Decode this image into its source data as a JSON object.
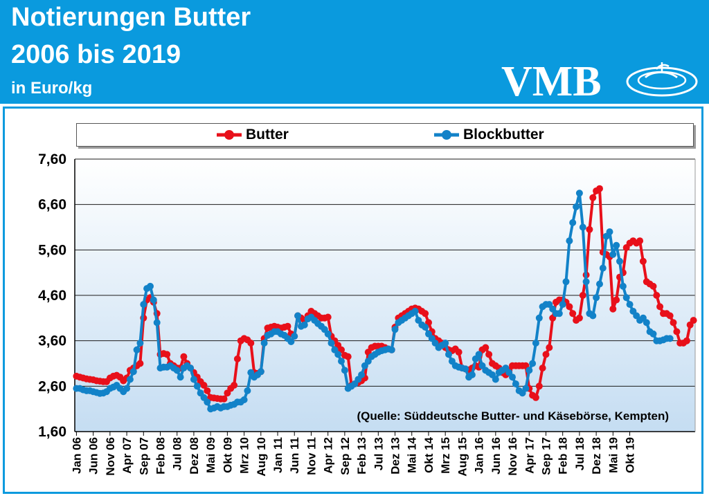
{
  "header": {
    "title_line1": "Notierungen Butter",
    "title_line2": "2006 bis 2019",
    "unit": "in Euro/kg",
    "logo_text": "VMB"
  },
  "colors": {
    "header_bg": "#0a9ade",
    "butter": "#e8101a",
    "blockbutter": "#1282c8",
    "plot_bg_top": "#ffffff",
    "plot_bg_bottom": "#c5ddf2"
  },
  "legend": {
    "butter_label": "Butter",
    "blockbutter_label": "Blockbutter"
  },
  "source_note": "(Quelle: Süddeutsche Butter- und Käsebörse, Kempten)",
  "chart_data": {
    "type": "line",
    "title": "",
    "xlabel": "",
    "ylabel": "",
    "ylim": [
      1.6,
      7.6
    ],
    "y_ticks": [
      "7,60",
      "6,60",
      "5,60",
      "4,60",
      "3,60",
      "2,60",
      "1,60"
    ],
    "x_tick_labels": [
      "Jan 06",
      "Jun 06",
      "Nov 06",
      "Apr 07",
      "Sep 07",
      "Feb 08",
      "Jul 08",
      "Dez 08",
      "Mai 09",
      "Okt 09",
      "Mrz 10",
      "Aug 10",
      "Jan 11",
      "Jun 11",
      "Nov 11",
      "Apr 12",
      "Sep 12",
      "Feb 13",
      "Jul 13",
      "Dez 13",
      "Mai 14",
      "Okt 14",
      "Mrz 15",
      "Aug 15",
      "Jan 16",
      "Jun 16",
      "Nov 16",
      "Apr 17",
      "Sep 17",
      "Feb 18",
      "Jul 18",
      "Dez 18",
      "Mai 19",
      "Okt 19"
    ],
    "x_start": "Jan 06",
    "x_end": "Dez 19",
    "grid": true,
    "legend_position": "top",
    "series": [
      {
        "name": "Butter",
        "values": [
          2.82,
          2.8,
          2.78,
          2.76,
          2.75,
          2.74,
          2.72,
          2.71,
          2.7,
          2.7,
          2.78,
          2.82,
          2.84,
          2.8,
          2.72,
          2.78,
          2.95,
          3.0,
          3.05,
          3.1,
          4.1,
          4.5,
          4.55,
          4.45,
          4.2,
          3.3,
          3.32,
          3.3,
          3.1,
          3.05,
          3.0,
          3.0,
          3.25,
          3.1,
          3.0,
          2.9,
          2.8,
          2.7,
          2.62,
          2.5,
          2.35,
          2.34,
          2.33,
          2.32,
          2.32,
          2.45,
          2.55,
          2.62,
          3.2,
          3.6,
          3.65,
          3.62,
          3.55,
          2.9,
          2.88,
          2.92,
          3.65,
          3.88,
          3.9,
          3.92,
          3.9,
          3.88,
          3.9,
          3.92,
          3.75,
          3.7,
          4.15,
          4.1,
          4.05,
          4.15,
          4.25,
          4.2,
          4.15,
          4.1,
          4.1,
          4.12,
          3.7,
          3.6,
          3.5,
          3.4,
          3.28,
          3.25,
          2.62,
          2.65,
          2.68,
          2.72,
          2.78,
          3.35,
          3.45,
          3.48,
          3.48,
          3.48,
          3.45,
          3.42,
          3.4,
          3.9,
          4.1,
          4.15,
          4.2,
          4.25,
          4.3,
          4.32,
          4.3,
          4.25,
          4.2,
          4.0,
          3.8,
          3.65,
          3.6,
          3.55,
          3.45,
          3.4,
          3.38,
          3.42,
          3.35,
          3.0,
          2.98,
          2.96,
          3.0,
          3.05,
          3.02,
          3.4,
          3.45,
          3.3,
          3.1,
          3.05,
          3.0,
          2.9,
          2.85,
          2.95,
          3.05,
          3.05,
          3.05,
          3.05,
          3.05,
          2.55,
          2.4,
          2.35,
          2.6,
          3.0,
          3.3,
          3.45,
          4.1,
          4.45,
          4.5,
          4.5,
          4.45,
          4.35,
          4.2,
          4.05,
          4.1,
          4.6,
          5.05,
          6.05,
          6.75,
          6.9,
          6.95,
          5.55,
          5.5,
          5.45,
          4.3,
          4.5,
          5.0,
          5.1,
          5.65,
          5.75,
          5.8,
          5.75,
          5.8,
          5.35,
          4.9,
          4.85,
          4.8,
          4.6,
          4.35,
          4.2,
          4.2,
          4.15,
          4.0,
          3.8,
          3.55,
          3.55,
          3.6,
          3.95,
          4.05
        ]
      },
      {
        "name": "Blockbutter",
        "values": [
          2.55,
          2.55,
          2.52,
          2.5,
          2.5,
          2.48,
          2.46,
          2.44,
          2.45,
          2.48,
          2.55,
          2.58,
          2.62,
          2.55,
          2.48,
          2.55,
          2.75,
          2.92,
          3.4,
          3.55,
          4.4,
          4.75,
          4.8,
          4.5,
          4.0,
          3.0,
          3.02,
          3.02,
          3.05,
          3.0,
          2.95,
          2.8,
          3.0,
          3.05,
          3.0,
          2.75,
          2.6,
          2.45,
          2.35,
          2.25,
          2.1,
          2.12,
          2.15,
          2.12,
          2.15,
          2.15,
          2.18,
          2.2,
          2.25,
          2.25,
          2.3,
          2.5,
          2.9,
          2.8,
          2.85,
          2.92,
          3.55,
          3.72,
          3.75,
          3.8,
          3.8,
          3.75,
          3.72,
          3.65,
          3.58,
          3.7,
          4.15,
          3.92,
          3.95,
          4.08,
          4.12,
          4.05,
          3.98,
          3.92,
          3.85,
          3.75,
          3.55,
          3.4,
          3.3,
          3.15,
          2.95,
          2.55,
          2.6,
          2.65,
          2.75,
          2.85,
          3.05,
          3.15,
          3.25,
          3.3,
          3.35,
          3.38,
          3.4,
          3.42,
          3.4,
          3.85,
          4.0,
          4.05,
          4.1,
          4.15,
          4.2,
          4.25,
          4.05,
          3.95,
          3.9,
          3.75,
          3.65,
          3.55,
          3.45,
          3.5,
          3.55,
          3.3,
          3.15,
          3.05,
          3.02,
          3.0,
          2.98,
          2.8,
          2.85,
          3.2,
          3.3,
          3.05,
          2.95,
          2.9,
          2.85,
          2.75,
          2.9,
          2.95,
          3.0,
          2.9,
          2.8,
          2.65,
          2.5,
          2.45,
          2.55,
          2.95,
          3.1,
          3.55,
          4.1,
          4.35,
          4.4,
          4.4,
          4.3,
          4.2,
          4.2,
          4.4,
          4.9,
          5.8,
          6.2,
          6.55,
          6.85,
          6.1,
          4.9,
          4.2,
          4.15,
          4.55,
          4.85,
          5.2,
          5.9,
          6.0,
          5.5,
          5.7,
          5.35,
          4.8,
          4.55,
          4.4,
          4.25,
          4.15,
          4.05,
          4.1,
          4.0,
          3.8,
          3.75,
          3.6,
          3.6,
          3.62,
          3.65,
          3.65
        ]
      }
    ]
  }
}
